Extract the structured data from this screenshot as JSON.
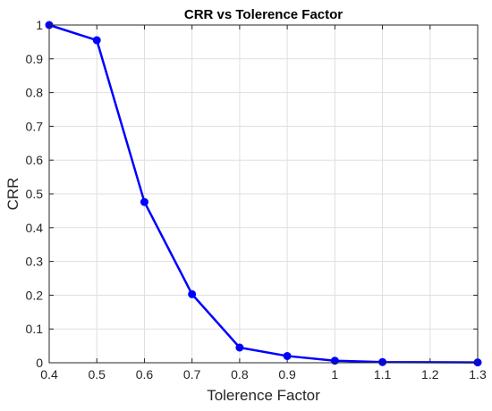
{
  "chart_data": {
    "type": "line",
    "title": "CRR vs  Tolerence Factor",
    "xlabel": "Tolerence Factor",
    "ylabel": "CRR",
    "xlim": [
      0.4,
      1.3
    ],
    "ylim": [
      0,
      1
    ],
    "xticks": [
      "0.4",
      "0.5",
      "0.6",
      "0.7",
      "0.8",
      "0.9",
      "1",
      "1.1",
      "1.2",
      "1.3"
    ],
    "yticks": [
      "0",
      "0.1",
      "0.2",
      "0.3",
      "0.4",
      "0.5",
      "0.6",
      "0.7",
      "0.8",
      "0.9",
      "1"
    ],
    "grid": true,
    "series": [
      {
        "color": "#0000ff",
        "marker": "circle",
        "x": [
          0.4,
          0.5,
          0.6,
          0.7,
          0.8,
          0.9,
          1.0,
          1.1,
          1.3
        ],
        "y": [
          1.0,
          0.955,
          0.476,
          0.203,
          0.045,
          0.02,
          0.006,
          0.002,
          0.001
        ]
      }
    ]
  }
}
